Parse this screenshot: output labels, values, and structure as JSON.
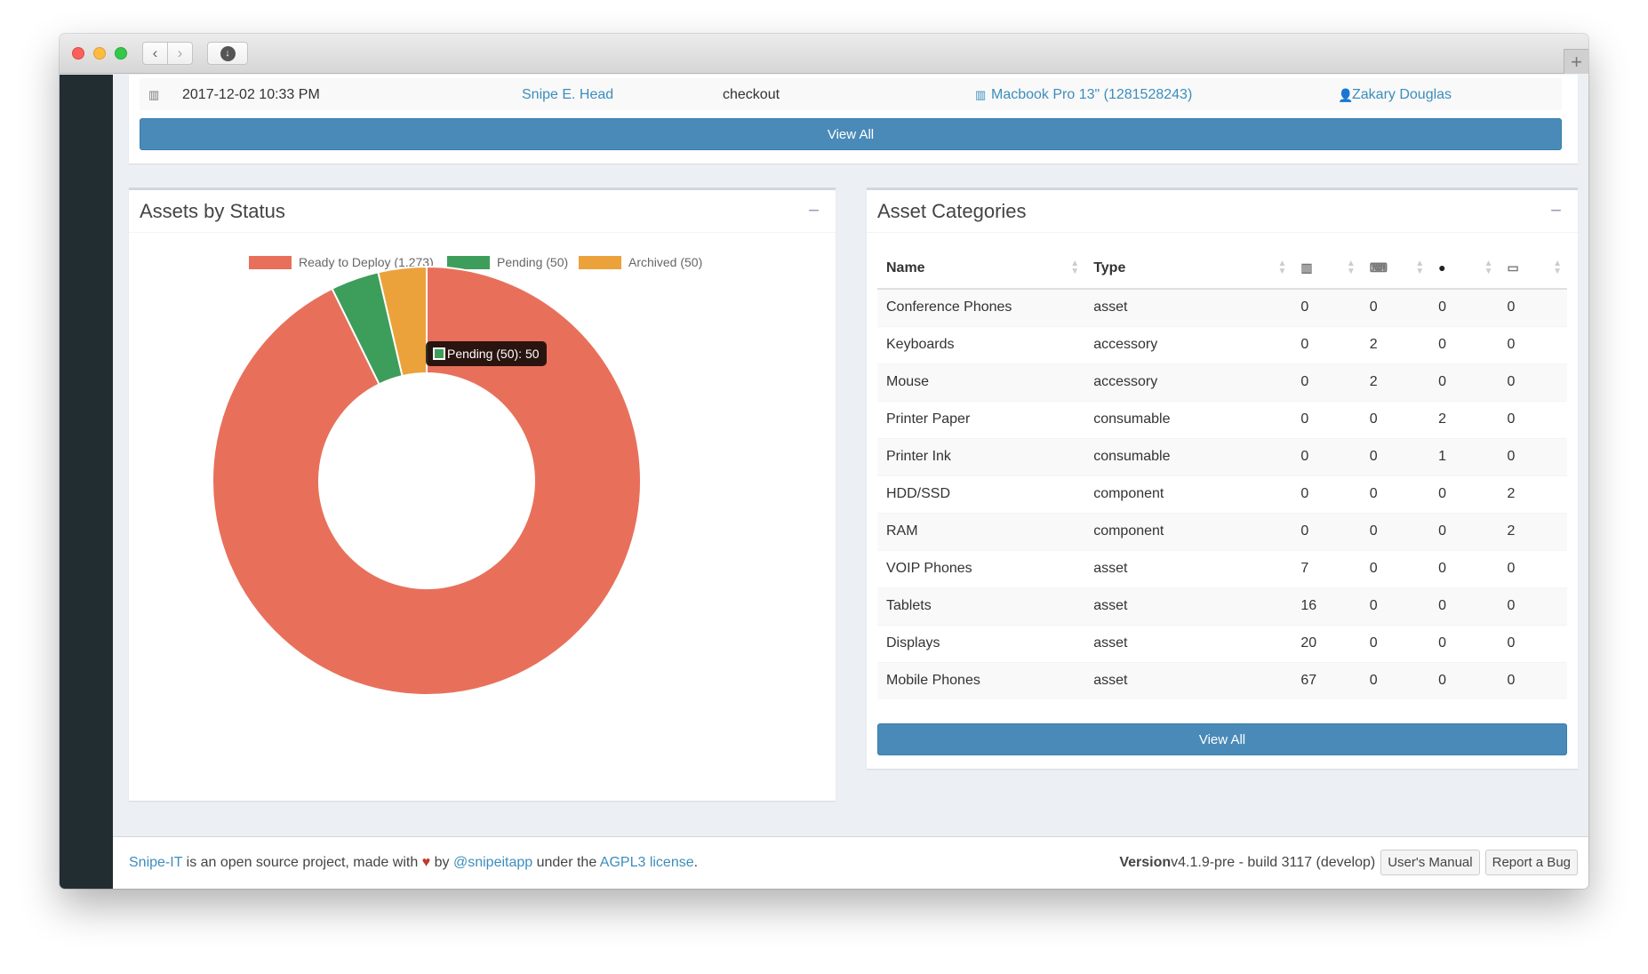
{
  "colors": {
    "ready": "#e8705b",
    "pending": "#3d9e5c",
    "archived": "#eba23b",
    "primary": "#4a8ab8"
  },
  "activity": {
    "date": "2017-12-02 10:33 PM",
    "admin": "Snipe E. Head",
    "action": "checkout",
    "item": "Macbook Pro 13\" (1281528243)",
    "target": "Zakary Douglas",
    "view_all": "View All"
  },
  "status_box": {
    "title": "Assets by Status",
    "collapse_symbol": "−",
    "tooltip": "Pending (50): 50"
  },
  "chart_data": {
    "type": "pie",
    "categories": [
      "Ready to Deploy (1,273)",
      "Pending (50)",
      "Archived (50)"
    ],
    "values": [
      1273,
      50,
      50
    ],
    "colors": [
      "#e8705b",
      "#3d9e5c",
      "#eba23b"
    ],
    "legend_position": "top",
    "donut": true
  },
  "categories_box": {
    "title": "Asset Categories",
    "collapse_symbol": "−",
    "headers": {
      "name": "Name",
      "type": "Type"
    },
    "header_icons": [
      "barcode-icon",
      "keyboard-icon",
      "tint-icon",
      "hdd-icon"
    ],
    "rows": [
      {
        "name": "Conference Phones",
        "type": "asset",
        "assets": "0",
        "accessories": "0",
        "consumables": "0",
        "components": "0"
      },
      {
        "name": "Keyboards",
        "type": "accessory",
        "assets": "0",
        "accessories": "2",
        "consumables": "0",
        "components": "0"
      },
      {
        "name": "Mouse",
        "type": "accessory",
        "assets": "0",
        "accessories": "2",
        "consumables": "0",
        "components": "0"
      },
      {
        "name": "Printer Paper",
        "type": "consumable",
        "assets": "0",
        "accessories": "0",
        "consumables": "2",
        "components": "0"
      },
      {
        "name": "Printer Ink",
        "type": "consumable",
        "assets": "0",
        "accessories": "0",
        "consumables": "1",
        "components": "0"
      },
      {
        "name": "HDD/SSD",
        "type": "component",
        "assets": "0",
        "accessories": "0",
        "consumables": "0",
        "components": "2"
      },
      {
        "name": "RAM",
        "type": "component",
        "assets": "0",
        "accessories": "0",
        "consumables": "0",
        "components": "2"
      },
      {
        "name": "VOIP Phones",
        "type": "asset",
        "assets": "7",
        "accessories": "0",
        "consumables": "0",
        "components": "0"
      },
      {
        "name": "Tablets",
        "type": "asset",
        "assets": "16",
        "accessories": "0",
        "consumables": "0",
        "components": "0"
      },
      {
        "name": "Displays",
        "type": "asset",
        "assets": "20",
        "accessories": "0",
        "consumables": "0",
        "components": "0"
      },
      {
        "name": "Mobile Phones",
        "type": "asset",
        "assets": "67",
        "accessories": "0",
        "consumables": "0",
        "components": "0"
      }
    ],
    "view_all": "View All"
  },
  "footer": {
    "brand": "Snipe-IT",
    "text1": " is an open source project, made with ",
    "heart": "♥",
    "text2": " by ",
    "handle": "@snipeitapp",
    "text3": " under the ",
    "license": "AGPL3 license",
    "text4": ".",
    "version_label": "Version",
    "version_value": " v4.1.9-pre - build 3117 (develop)",
    "manual_button": "User's Manual",
    "bug_button": "Report a Bug"
  }
}
